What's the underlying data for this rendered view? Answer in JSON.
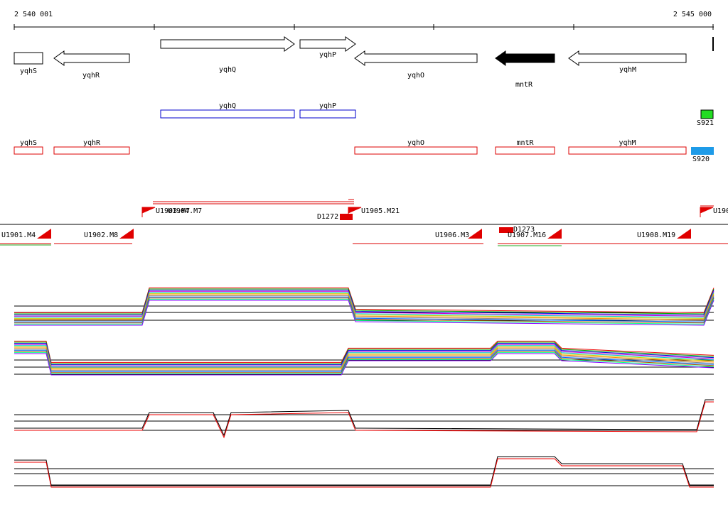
{
  "axis": {
    "start": "2 540 001",
    "end": "2 545 000"
  },
  "genes": [
    {
      "label": "yqhS"
    },
    {
      "label": "yqhR"
    },
    {
      "label": "yqhQ"
    },
    {
      "label": "yqhP"
    },
    {
      "label": "yqhO"
    },
    {
      "label": "mntR"
    },
    {
      "label": "yqhM"
    }
  ],
  "blue_features": [
    {
      "label": "yqhQ"
    },
    {
      "label": "yqhP"
    }
  ],
  "signal_features": [
    {
      "label": "S921"
    },
    {
      "label": "S920"
    }
  ],
  "red_features": [
    {
      "label": "yqhS"
    },
    {
      "label": "yqhR"
    },
    {
      "label": "yqhO"
    },
    {
      "label": "mntR"
    },
    {
      "label": "yqhM"
    }
  ],
  "transcripts": [
    {
      "label": "U1901.M4"
    },
    {
      "label": "U1902.M8"
    },
    {
      "label": "U1903.M7"
    },
    {
      "label": "U1904.M7"
    },
    {
      "label": "D1272"
    },
    {
      "label": "U1905.M21"
    },
    {
      "label": "U1906.M3"
    },
    {
      "label": "D1273"
    },
    {
      "label": "U1907.M16"
    },
    {
      "label": "U1908.M19"
    },
    {
      "label": "U190"
    }
  ]
}
